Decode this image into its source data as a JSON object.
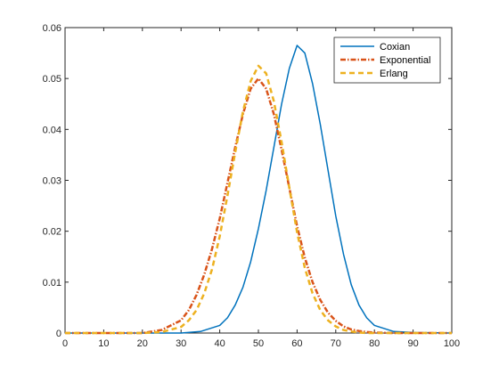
{
  "chart_data": {
    "type": "line",
    "title": "",
    "xlabel": "",
    "ylabel": "",
    "xlim": [
      0,
      100
    ],
    "ylim": [
      0,
      0.06
    ],
    "xticks": [
      "0",
      "10",
      "20",
      "30",
      "40",
      "50",
      "60",
      "70",
      "80",
      "90",
      "100"
    ],
    "yticks": [
      "0",
      "0.01",
      "0.02",
      "0.03",
      "0.04",
      "0.05",
      "0.06"
    ],
    "grid": false,
    "legend_position": "top-right",
    "series": [
      {
        "name": "Coxian",
        "color": "#0072BD",
        "style": "solid",
        "x": [
          30,
          35,
          40,
          42,
          44,
          46,
          48,
          50,
          52,
          54,
          56,
          58,
          60,
          62,
          64,
          66,
          68,
          70,
          72,
          74,
          76,
          78,
          80,
          85,
          90,
          100
        ],
        "y": [
          0,
          0.0003,
          0.0015,
          0.003,
          0.0055,
          0.009,
          0.014,
          0.0205,
          0.028,
          0.0365,
          0.045,
          0.052,
          0.0565,
          0.055,
          0.049,
          0.041,
          0.032,
          0.023,
          0.0155,
          0.0095,
          0.0055,
          0.003,
          0.0015,
          0.0003,
          0.0001,
          0
        ]
      },
      {
        "name": "Exponential",
        "color": "#D95319",
        "style": "dash-dot",
        "x": [
          20,
          25,
          30,
          32,
          34,
          36,
          38,
          40,
          42,
          44,
          46,
          48,
          50,
          52,
          54,
          56,
          58,
          60,
          62,
          64,
          66,
          68,
          70,
          72,
          74,
          76,
          78,
          80,
          85,
          90,
          100
        ],
        "y": [
          0,
          0.0006,
          0.0025,
          0.0045,
          0.0075,
          0.0115,
          0.0165,
          0.0225,
          0.0295,
          0.0365,
          0.043,
          0.048,
          0.05,
          0.048,
          0.043,
          0.036,
          0.0285,
          0.021,
          0.0148,
          0.01,
          0.0065,
          0.004,
          0.0024,
          0.0013,
          0.0007,
          0.0004,
          0.0002,
          0.0001,
          0,
          0,
          0
        ]
      },
      {
        "name": "Erlang",
        "color": "#EDB120",
        "style": "dashed",
        "x": [
          20,
          25,
          30,
          32,
          34,
          36,
          38,
          40,
          42,
          44,
          46,
          48,
          50,
          52,
          54,
          56,
          58,
          60,
          62,
          64,
          66,
          68,
          70,
          72,
          74,
          76,
          78,
          80,
          85,
          90,
          100
        ],
        "y": [
          0,
          0.0002,
          0.0012,
          0.0025,
          0.0045,
          0.0078,
          0.0125,
          0.019,
          0.027,
          0.0355,
          0.0435,
          0.0495,
          0.0525,
          0.051,
          0.0455,
          0.0375,
          0.0285,
          0.0198,
          0.0128,
          0.0078,
          0.0045,
          0.0025,
          0.0013,
          0.0006,
          0.0003,
          0.0001,
          0,
          0,
          0,
          0,
          0
        ]
      }
    ]
  }
}
